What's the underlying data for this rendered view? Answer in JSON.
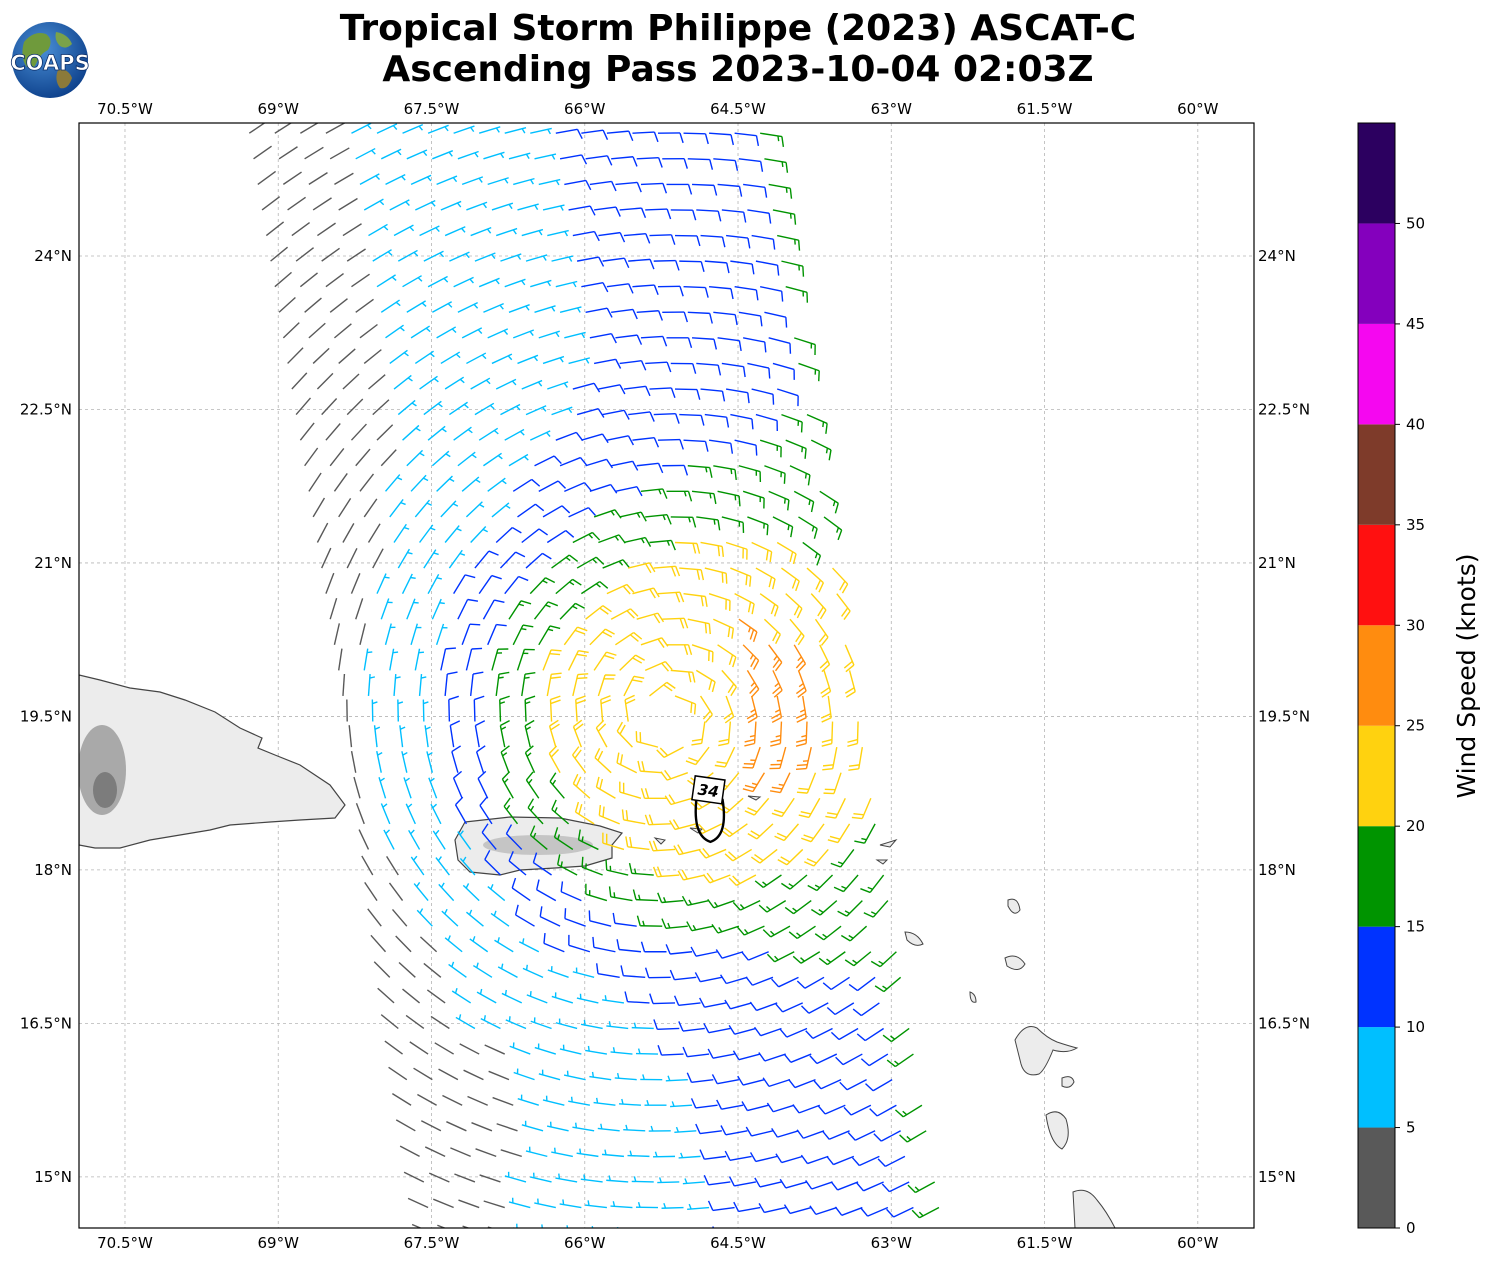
{
  "title_line1": "Tropical Storm Philippe (2023) ASCAT-C",
  "title_line2": "Ascending Pass 2023-10-04 02:03Z",
  "logo_text": "COAPS",
  "chart_data": {
    "type": "wind-barb-map",
    "lon_range": [
      -70.95,
      -59.45
    ],
    "lat_range": [
      14.5,
      25.3
    ],
    "lon_ticks": [
      "70.5°W",
      "69°W",
      "67.5°W",
      "66°W",
      "64.5°W",
      "63°W",
      "61.5°W",
      "60°W"
    ],
    "lon_tick_values": [
      -70.5,
      -69,
      -67.5,
      -66,
      -64.5,
      -63,
      -61.5,
      -60
    ],
    "lat_ticks": [
      "15°N",
      "16.5°N",
      "18°N",
      "19.5°N",
      "21°N",
      "22.5°N",
      "24°N"
    ],
    "lat_tick_values": [
      15,
      16.5,
      18,
      19.5,
      21,
      22.5,
      24
    ],
    "grid": true,
    "storm_center": {
      "lon": -64.77,
      "lat": 18.45
    },
    "wind_field": {
      "center_lon": -65.2,
      "center_lat": 19.5,
      "swath_lon_range_north": [
        -69.3,
        -64.3
      ],
      "swath_lon_range_south": [
        -67.5,
        -62.5
      ]
    },
    "radius_label": "34",
    "colorbar": {
      "label": "Wind Speed (knots)",
      "ticks": [
        "0",
        "5",
        "10",
        "15",
        "20",
        "25",
        "30",
        "35",
        "40",
        "45",
        "50"
      ],
      "bins": [
        {
          "min": 0,
          "max": 5,
          "color": "#595959"
        },
        {
          "min": 5,
          "max": 10,
          "color": "#00bfff"
        },
        {
          "min": 10,
          "max": 15,
          "color": "#0033ff"
        },
        {
          "min": 15,
          "max": 20,
          "color": "#009400"
        },
        {
          "min": 20,
          "max": 25,
          "color": "#ffd20f"
        },
        {
          "min": 25,
          "max": 30,
          "color": "#ff8c0f"
        },
        {
          "min": 30,
          "max": 35,
          "color": "#ff1010"
        },
        {
          "min": 35,
          "max": 40,
          "color": "#7e3b2a"
        },
        {
          "min": 40,
          "max": 45,
          "color": "#f507f0"
        },
        {
          "min": 45,
          "max": 50,
          "color": "#8400bd"
        },
        {
          "min": 50,
          "max": 55,
          "color": "#2c0060"
        }
      ]
    }
  }
}
